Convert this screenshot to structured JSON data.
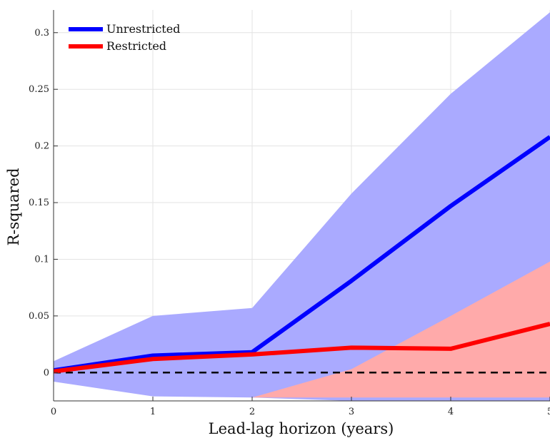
{
  "chart_data": {
    "type": "line",
    "xlabel": "Lead-lag horizon (years)",
    "ylabel": "R-squared",
    "x": [
      0,
      1,
      2,
      3,
      4,
      5
    ],
    "xlim": [
      0,
      5
    ],
    "ylim": [
      -0.025,
      0.32
    ],
    "xticks": [
      0,
      1,
      2,
      3,
      4,
      5
    ],
    "yticks": [
      0,
      0.05,
      0.1,
      0.15,
      0.2,
      0.25,
      0.3
    ],
    "xtick_labels": [
      "0",
      "1",
      "2",
      "3",
      "4",
      "5"
    ],
    "ytick_labels": [
      "0",
      "0.05",
      "0.1",
      "0.15",
      "0.2",
      "0.25",
      "0.3"
    ],
    "grid": true,
    "legend_position": "top-left",
    "series": [
      {
        "name": "Unrestricted",
        "color": "#0000ff",
        "band_color": "#aaaaff",
        "values": [
          0.002,
          0.015,
          0.018,
          0.081,
          0.147,
          0.208
        ],
        "lower": [
          -0.008,
          -0.021,
          -0.022,
          -0.025,
          -0.025,
          -0.025
        ],
        "upper": [
          0.01,
          0.05,
          0.057,
          0.158,
          0.246,
          0.318
        ]
      },
      {
        "name": "Restricted",
        "color": "#ff0000",
        "band_color": "#ffaaaa",
        "values": [
          0.001,
          0.012,
          0.016,
          0.022,
          0.021,
          0.043
        ],
        "lower": [
          -0.025,
          -0.025,
          -0.022,
          -0.022,
          -0.022,
          -0.022
        ],
        "upper": [
          -0.025,
          -0.025,
          -0.022,
          0.003,
          0.05,
          0.098
        ]
      }
    ],
    "reference_line": {
      "y": 0,
      "style": "dashed",
      "color": "#000000"
    }
  }
}
